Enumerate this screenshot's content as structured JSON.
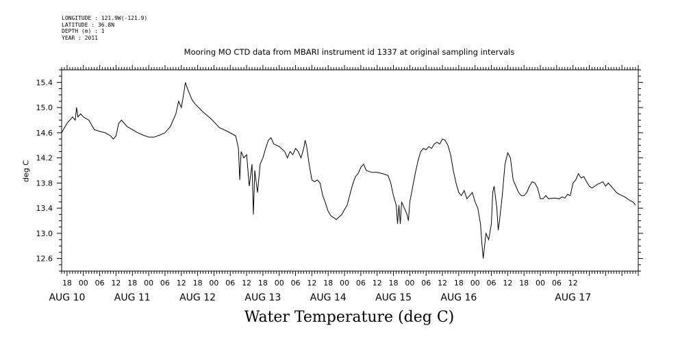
{
  "header": {
    "longitude": "LONGITUDE : 121.9W(-121.9)",
    "latitude": "LATITUDE : 36.8N",
    "depth": "DEPTH (m) : 1",
    "year": "YEAR : 2011"
  },
  "chart_data": {
    "type": "line",
    "title": "Mooring MO CTD data from MBARI instrument id 1337 at original sampling intervals",
    "xlabel": "Water Temperature (deg C)",
    "ylabel": "deg C",
    "ylim": [
      12.4,
      15.6
    ],
    "xlim_hours": [
      -8,
      204
    ],
    "x_unit": "hours from 2011-08-10 00:00",
    "yticks": [
      "12.6",
      "13.0",
      "13.4",
      "13.8",
      "14.2",
      "14.6",
      "15.0",
      "15.4"
    ],
    "hour_ticks": [
      "18",
      "00",
      "06",
      "12",
      "18",
      "00",
      "06",
      "12",
      "18",
      "00",
      "06",
      "12",
      "18",
      "00",
      "06",
      "12",
      "18",
      "00",
      "06",
      "12",
      "18",
      "00",
      "06",
      "12",
      "18",
      "00",
      "06",
      "12",
      "18",
      "00",
      "06",
      "12"
    ],
    "date_labels": [
      "AUG 10",
      "AUG 11",
      "AUG 12",
      "AUG 13",
      "AUG 14",
      "AUG 15",
      "AUG 16",
      "AUG 17"
    ],
    "series": [
      {
        "values": [
          [
            -8,
            14.6
          ],
          [
            -6,
            14.75
          ],
          [
            -4,
            14.85
          ],
          [
            -3,
            14.8
          ],
          [
            -2.5,
            15.0
          ],
          [
            -2,
            14.85
          ],
          [
            -1,
            14.9
          ],
          [
            0,
            14.85
          ],
          [
            2,
            14.8
          ],
          [
            4,
            14.65
          ],
          [
            6,
            14.62
          ],
          [
            8,
            14.6
          ],
          [
            10,
            14.55
          ],
          [
            11,
            14.5
          ],
          [
            12,
            14.55
          ],
          [
            13,
            14.75
          ],
          [
            14,
            14.8
          ],
          [
            16,
            14.7
          ],
          [
            18,
            14.65
          ],
          [
            20,
            14.6
          ],
          [
            22,
            14.56
          ],
          [
            24,
            14.53
          ],
          [
            26,
            14.53
          ],
          [
            28,
            14.56
          ],
          [
            30,
            14.6
          ],
          [
            32,
            14.7
          ],
          [
            33,
            14.8
          ],
          [
            34,
            14.9
          ],
          [
            35,
            15.1
          ],
          [
            36,
            15.0
          ],
          [
            37,
            15.25
          ],
          [
            37.5,
            15.4
          ],
          [
            38,
            15.33
          ],
          [
            39,
            15.22
          ],
          [
            40,
            15.12
          ],
          [
            41,
            15.06
          ],
          [
            44,
            14.93
          ],
          [
            47,
            14.82
          ],
          [
            50,
            14.68
          ],
          [
            53,
            14.62
          ],
          [
            56,
            14.55
          ],
          [
            57,
            14.35
          ],
          [
            57.5,
            13.85
          ],
          [
            58,
            14.3
          ],
          [
            59,
            14.2
          ],
          [
            60,
            14.25
          ],
          [
            61,
            13.75
          ],
          [
            62,
            14.1
          ],
          [
            62.5,
            13.3
          ],
          [
            63,
            14.0
          ],
          [
            64,
            13.65
          ],
          [
            65,
            14.1
          ],
          [
            66,
            14.2
          ],
          [
            67,
            14.35
          ],
          [
            68,
            14.48
          ],
          [
            69,
            14.52
          ],
          [
            70,
            14.42
          ],
          [
            72,
            14.38
          ],
          [
            74,
            14.3
          ],
          [
            75,
            14.2
          ],
          [
            76,
            14.3
          ],
          [
            77,
            14.25
          ],
          [
            78,
            14.35
          ],
          [
            79,
            14.3
          ],
          [
            80,
            14.2
          ],
          [
            81,
            14.35
          ],
          [
            81.5,
            14.48
          ],
          [
            82,
            14.4
          ],
          [
            83,
            14.1
          ],
          [
            84,
            13.85
          ],
          [
            85,
            13.82
          ],
          [
            86,
            13.85
          ],
          [
            87,
            13.8
          ],
          [
            88,
            13.6
          ],
          [
            89,
            13.48
          ],
          [
            90,
            13.35
          ],
          [
            91,
            13.28
          ],
          [
            92,
            13.25
          ],
          [
            93,
            13.22
          ],
          [
            94,
            13.26
          ],
          [
            95,
            13.3
          ],
          [
            96,
            13.38
          ],
          [
            97,
            13.45
          ],
          [
            98,
            13.62
          ],
          [
            99,
            13.78
          ],
          [
            100,
            13.9
          ],
          [
            101,
            13.95
          ],
          [
            102,
            14.05
          ],
          [
            103,
            14.1
          ],
          [
            104,
            14.0
          ],
          [
            106,
            13.97
          ],
          [
            108,
            13.97
          ],
          [
            110,
            13.95
          ],
          [
            112,
            13.92
          ],
          [
            113,
            13.8
          ],
          [
            114,
            13.6
          ],
          [
            115,
            13.45
          ],
          [
            115.5,
            13.15
          ],
          [
            116,
            13.45
          ],
          [
            116.5,
            13.15
          ],
          [
            117,
            13.5
          ],
          [
            118,
            13.4
          ],
          [
            119,
            13.3
          ],
          [
            119.5,
            13.2
          ],
          [
            120,
            13.5
          ],
          [
            121,
            13.72
          ],
          [
            122,
            13.95
          ],
          [
            123,
            14.15
          ],
          [
            124,
            14.3
          ],
          [
            125,
            14.35
          ],
          [
            126,
            14.33
          ],
          [
            127,
            14.38
          ],
          [
            128,
            14.35
          ],
          [
            129,
            14.42
          ],
          [
            130,
            14.45
          ],
          [
            131,
            14.42
          ],
          [
            132,
            14.5
          ],
          [
            133,
            14.48
          ],
          [
            134,
            14.4
          ],
          [
            135,
            14.25
          ],
          [
            136,
            14.0
          ],
          [
            137,
            13.8
          ],
          [
            138,
            13.65
          ],
          [
            139,
            13.6
          ],
          [
            140,
            13.68
          ],
          [
            141,
            13.55
          ],
          [
            142,
            13.6
          ],
          [
            143,
            13.65
          ],
          [
            144,
            13.5
          ],
          [
            145,
            13.4
          ],
          [
            146,
            13.15
          ],
          [
            146.5,
            12.85
          ],
          [
            147,
            12.6
          ],
          [
            148,
            13.0
          ],
          [
            149,
            12.9
          ],
          [
            150,
            13.15
          ],
          [
            150.5,
            13.65
          ],
          [
            151,
            13.75
          ],
          [
            152,
            13.4
          ],
          [
            152.5,
            13.05
          ],
          [
            153,
            13.2
          ],
          [
            154,
            13.6
          ],
          [
            155,
            14.1
          ],
          [
            156,
            14.28
          ],
          [
            157,
            14.2
          ],
          [
            158,
            13.85
          ],
          [
            159,
            13.75
          ],
          [
            160,
            13.65
          ],
          [
            161,
            13.6
          ],
          [
            162,
            13.6
          ],
          [
            163,
            13.65
          ],
          [
            164,
            13.75
          ],
          [
            165,
            13.82
          ],
          [
            166,
            13.8
          ],
          [
            167,
            13.72
          ],
          [
            168,
            13.55
          ],
          [
            169,
            13.55
          ],
          [
            170,
            13.6
          ],
          [
            171,
            13.55
          ],
          [
            173,
            13.56
          ],
          [
            175,
            13.55
          ],
          [
            176,
            13.58
          ],
          [
            177,
            13.56
          ],
          [
            178,
            13.62
          ],
          [
            179,
            13.6
          ],
          [
            180,
            13.8
          ],
          [
            181,
            13.85
          ],
          [
            182,
            13.95
          ],
          [
            183,
            13.88
          ],
          [
            184,
            13.9
          ],
          [
            185,
            13.82
          ],
          [
            186,
            13.75
          ],
          [
            187,
            13.72
          ],
          [
            188,
            13.75
          ],
          [
            189,
            13.78
          ],
          [
            190,
            13.8
          ],
          [
            191,
            13.82
          ],
          [
            192,
            13.75
          ],
          [
            193,
            13.8
          ],
          [
            194,
            13.75
          ],
          [
            195,
            13.7
          ],
          [
            196,
            13.65
          ],
          [
            197,
            13.62
          ],
          [
            198,
            13.6
          ],
          [
            199,
            13.58
          ],
          [
            200,
            13.55
          ],
          [
            201,
            13.52
          ],
          [
            202,
            13.5
          ],
          [
            203,
            13.45
          ]
        ]
      }
    ]
  }
}
